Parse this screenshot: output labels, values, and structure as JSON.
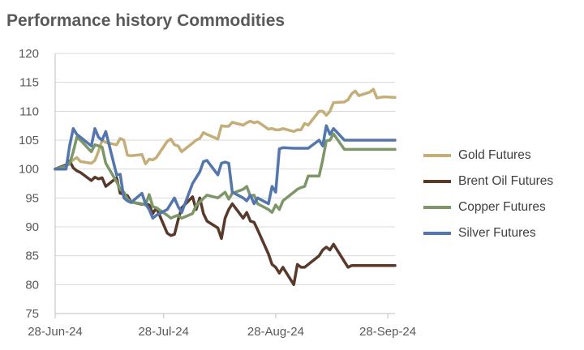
{
  "chart_data": {
    "type": "line",
    "title": "Performance history Commodities",
    "xlabel": "",
    "ylabel": "",
    "ylim": [
      75,
      120
    ],
    "yticks": [
      75,
      80,
      85,
      90,
      95,
      100,
      105,
      110,
      115,
      120
    ],
    "xticks": [
      "28-Jun-24",
      "28-Jul-24",
      "28-Aug-24",
      "28-Sep-24"
    ],
    "grid": "horizontal",
    "legend_position": "right",
    "x": [
      "2024-06-28",
      "2024-07-01",
      "2024-07-02",
      "2024-07-03",
      "2024-07-04",
      "2024-07-05",
      "2024-07-08",
      "2024-07-09",
      "2024-07-10",
      "2024-07-11",
      "2024-07-12",
      "2024-07-15",
      "2024-07-16",
      "2024-07-17",
      "2024-07-18",
      "2024-07-19",
      "2024-07-22",
      "2024-07-23",
      "2024-07-24",
      "2024-07-25",
      "2024-07-26",
      "2024-07-29",
      "2024-07-30",
      "2024-07-31",
      "2024-08-01",
      "2024-08-02",
      "2024-08-05",
      "2024-08-06",
      "2024-08-07",
      "2024-08-08",
      "2024-08-09",
      "2024-08-12",
      "2024-08-13",
      "2024-08-14",
      "2024-08-15",
      "2024-08-16",
      "2024-08-19",
      "2024-08-20",
      "2024-08-21",
      "2024-08-22",
      "2024-08-23",
      "2024-08-26",
      "2024-08-27",
      "2024-08-28",
      "2024-08-29",
      "2024-08-30",
      "2024-09-02",
      "2024-09-03",
      "2024-09-04",
      "2024-09-05",
      "2024-09-06",
      "2024-09-09",
      "2024-09-10",
      "2024-09-11",
      "2024-09-12",
      "2024-09-13",
      "2024-09-16",
      "2024-09-17",
      "2024-09-18",
      "2024-09-19",
      "2024-09-20",
      "2024-09-23",
      "2024-09-24",
      "2024-09-25",
      "2024-09-26",
      "2024-09-27",
      "2024-09-30"
    ],
    "series": [
      {
        "name": "Gold Futures",
        "color": "#C4AE7A",
        "values": [
          100.0,
          100.7,
          101.1,
          101.6,
          102.0,
          101.3,
          101.0,
          101.5,
          103.1,
          105.0,
          104.6,
          104.2,
          105.3,
          105.0,
          102.4,
          102.3,
          102.5,
          100.9,
          101.7,
          101.6,
          102.0,
          104.8,
          105.2,
          104.2,
          104.0,
          103.0,
          104.5,
          105.0,
          105.3,
          106.3,
          106.0,
          105.2,
          107.5,
          107.4,
          107.4,
          108.1,
          107.6,
          108.0,
          108.3,
          108.0,
          108.2,
          106.9,
          107.0,
          106.8,
          106.8,
          107.0,
          106.5,
          106.8,
          106.8,
          107.9,
          107.6,
          110.0,
          110.0,
          109.3,
          110.0,
          111.5,
          111.6,
          112.0,
          113.0,
          113.5,
          112.7,
          113.3,
          113.8,
          112.3,
          112.4,
          112.5,
          112.4
        ]
      },
      {
        "name": "Brent Oil Futures",
        "color": "#59392A",
        "values": [
          100.0,
          100.7,
          101.4,
          100.2,
          99.7,
          99.4,
          98.0,
          98.6,
          98.3,
          98.5,
          97.0,
          98.5,
          95.8,
          95.7,
          95.4,
          94.3,
          93.9,
          94.0,
          93.8,
          92.3,
          93.3,
          88.9,
          88.5,
          88.7,
          91.2,
          93.3,
          95.2,
          93.0,
          95.0,
          92.3,
          91.0,
          89.8,
          88.0,
          91.5,
          93.0,
          94.0,
          91.5,
          92.5,
          91.0,
          90.8,
          89.5,
          85.3,
          83.5,
          83.0,
          82.0,
          83.0,
          80.0,
          83.5,
          83.0,
          83.0,
          83.5,
          85.0,
          86.0,
          86.5,
          86.0,
          87.0,
          84.0,
          83.0,
          83.3,
          83.3,
          83.3,
          83.3,
          83.3,
          83.3,
          83.3,
          83.3,
          83.3
        ]
      },
      {
        "name": "Copper Futures",
        "color": "#7D9769",
        "values": [
          100.0,
          100.5,
          100.9,
          103.0,
          105.5,
          105.0,
          103.0,
          104.2,
          104.0,
          103.8,
          101.0,
          97.8,
          96.5,
          96.0,
          94.8,
          94.3,
          94.0,
          93.8,
          95.6,
          93.5,
          93.3,
          92.0,
          91.5,
          91.8,
          92.0,
          91.5,
          92.3,
          93.7,
          94.3,
          94.9,
          95.5,
          95.0,
          95.5,
          96.0,
          94.8,
          95.8,
          96.5,
          97.0,
          95.3,
          95.5,
          94.0,
          93.0,
          92.5,
          93.8,
          93.0,
          94.5,
          96.0,
          96.5,
          96.8,
          97.0,
          98.8,
          98.8,
          101.6,
          104.9,
          105.0,
          106.1,
          103.4,
          103.4,
          103.4,
          103.4,
          103.4,
          103.4,
          103.4,
          103.4,
          103.4,
          103.4,
          103.4
        ]
      },
      {
        "name": "Silver Futures",
        "color": "#5376AC",
        "values": [
          100.0,
          100.0,
          104.0,
          107.0,
          106.0,
          105.5,
          104.0,
          107.0,
          105.5,
          105.0,
          106.5,
          99.0,
          99.1,
          95.0,
          94.5,
          94.2,
          95.8,
          94.0,
          93.0,
          91.5,
          92.0,
          93.0,
          94.0,
          95.0,
          93.5,
          92.5,
          97.5,
          98.5,
          99.5,
          101.3,
          101.5,
          99.0,
          101.0,
          101.2,
          101.0,
          96.0,
          95.0,
          94.5,
          95.5,
          94.0,
          95.0,
          94.0,
          97.0,
          96.0,
          103.5,
          103.7,
          103.6,
          103.6,
          103.6,
          103.6,
          103.6,
          105.0,
          104.0,
          107.5,
          106.0,
          107.0,
          105.0,
          105.0,
          105.0,
          105.0,
          105.0,
          105.0,
          105.0,
          105.0,
          105.0,
          105.0,
          105.0
        ]
      }
    ]
  }
}
